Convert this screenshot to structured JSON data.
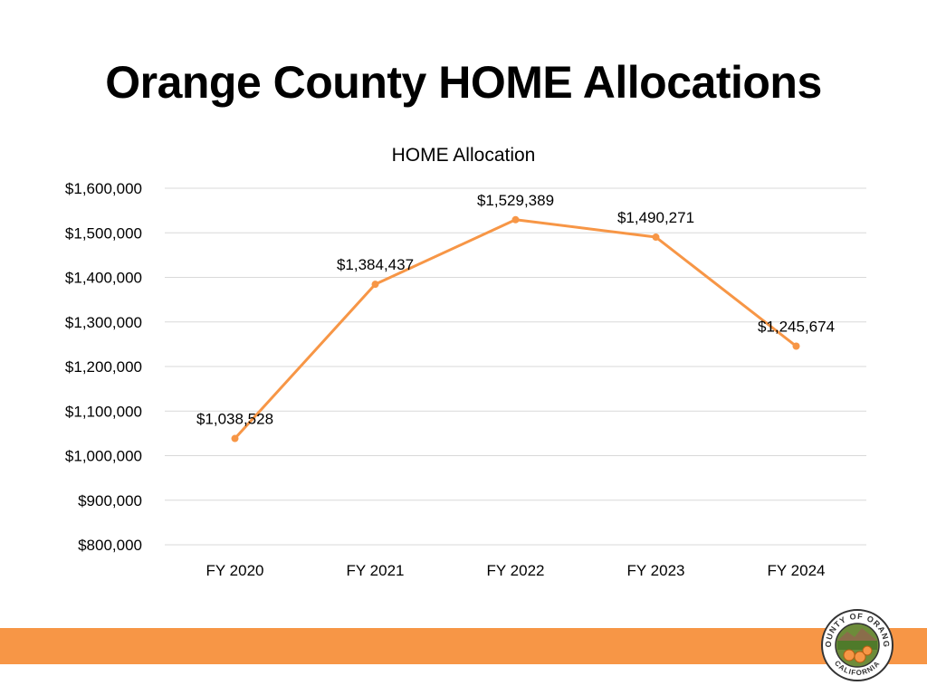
{
  "slide": {
    "title": "Orange County HOME Allocations",
    "accent_color": "#F79646",
    "seal_text_top": "COUNTY OF ORANGE",
    "seal_text_bottom": "CALIFORNIA"
  },
  "chart_data": {
    "type": "line",
    "title": "HOME Allocation",
    "xlabel": "",
    "ylabel": "",
    "categories": [
      "FY 2020",
      "FY 2021",
      "FY 2022",
      "FY 2023",
      "FY 2024"
    ],
    "series": [
      {
        "values": [
          1038528,
          1384437,
          1529389,
          1490271,
          1245674
        ],
        "data_labels": [
          "$1,038,528",
          "$1,384,437",
          "$1,529,389",
          "$1,490,271",
          "$1,245,674"
        ],
        "color": "#F79646"
      }
    ],
    "ylim": [
      800000,
      1600000
    ],
    "yticks": [
      800000,
      900000,
      1000000,
      1100000,
      1200000,
      1300000,
      1400000,
      1500000,
      1600000
    ],
    "ytick_labels": [
      "$800,000",
      "$900,000",
      "$1,000,000",
      "$1,100,000",
      "$1,200,000",
      "$1,300,000",
      "$1,400,000",
      "$1,500,000",
      "$1,600,000"
    ],
    "grid": true,
    "legend": "none"
  }
}
